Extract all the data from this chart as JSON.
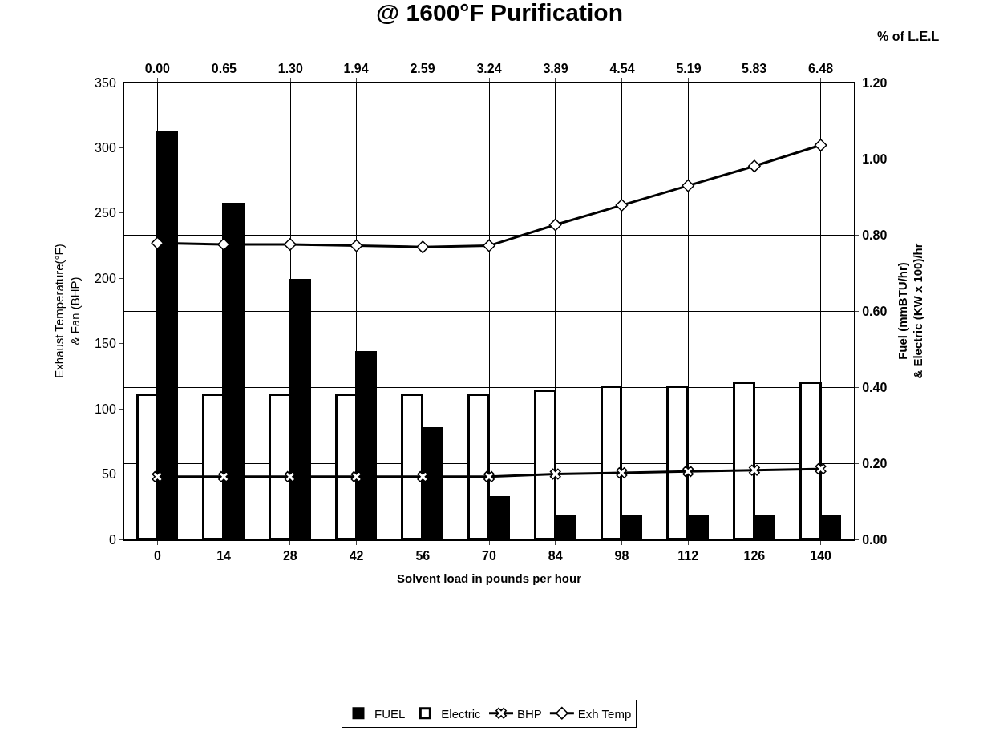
{
  "chart_data": {
    "type": "bar",
    "title": "@ 1600°F Purification",
    "xlabel": "Solvent load in pounds per hour",
    "ylabel": "Exhaust Temperature(°F)\n& Fan (BHP)",
    "y2label": "Fuel (mmBTU/hr)\n& Electric (KW x 100)/hr",
    "x2label": "% of L.E.L",
    "categories": [
      "0",
      "14",
      "28",
      "42",
      "56",
      "70",
      "84",
      "98",
      "112",
      "126",
      "140"
    ],
    "series": [
      {
        "name": "FUEL",
        "axis": "y2",
        "color": "#000000",
        "values": [
          1.07,
          0.88,
          0.68,
          0.49,
          0.29,
          0.11,
          0.06,
          0.06,
          0.06,
          0.06,
          0.06
        ]
      },
      {
        "name": "Electric",
        "axis": "y2",
        "color": "#ffffff",
        "values": [
          0.38,
          0.38,
          0.38,
          0.38,
          0.38,
          0.38,
          0.39,
          0.4,
          0.4,
          0.41,
          0.41
        ]
      },
      {
        "name": "BHP",
        "type": "line",
        "color": "#000000",
        "marker": "cross",
        "values": [
          48,
          48,
          48,
          48,
          48,
          48,
          50,
          51,
          52,
          53,
          54
        ]
      },
      {
        "name": "Exh Temp",
        "type": "line",
        "color": "#000000",
        "marker": "diamond",
        "values": [
          227,
          226,
          226,
          225,
          224,
          225,
          241,
          256,
          271,
          286,
          302
        ]
      }
    ],
    "ylim": [
      0,
      350
    ],
    "yticks": [
      0,
      50,
      100,
      150,
      200,
      250,
      300,
      350
    ],
    "y2lim": [
      0,
      1.2
    ],
    "y2ticks": [
      {
        "value": 0,
        "label": "0.00"
      },
      {
        "value": 0.2,
        "label": "0.20"
      },
      {
        "value": 0.4,
        "label": "0.40"
      },
      {
        "value": 0.6,
        "label": "0.60"
      },
      {
        "value": 0.8,
        "label": "0.80"
      },
      {
        "value": 1.0,
        "label": "1.00"
      },
      {
        "value": 1.2,
        "label": "1.20"
      }
    ],
    "x2lim": [
      -0.324,
      6.804
    ],
    "x2ticks": [
      {
        "value": 0,
        "label": "0.00"
      },
      {
        "value": 0.65,
        "label": "0.65"
      },
      {
        "value": 1.3,
        "label": "1.30"
      },
      {
        "value": 1.94,
        "label": "1.94"
      },
      {
        "value": 2.59,
        "label": "2.59"
      },
      {
        "value": 3.24,
        "label": "3.24"
      },
      {
        "value": 3.89,
        "label": "3.89"
      },
      {
        "value": 4.54,
        "label": "4.54"
      },
      {
        "value": 5.19,
        "label": "5.19"
      },
      {
        "value": 5.83,
        "label": "5.83"
      },
      {
        "value": 6.48,
        "label": "6.48"
      }
    ],
    "grid": true,
    "legend": "bottom"
  }
}
